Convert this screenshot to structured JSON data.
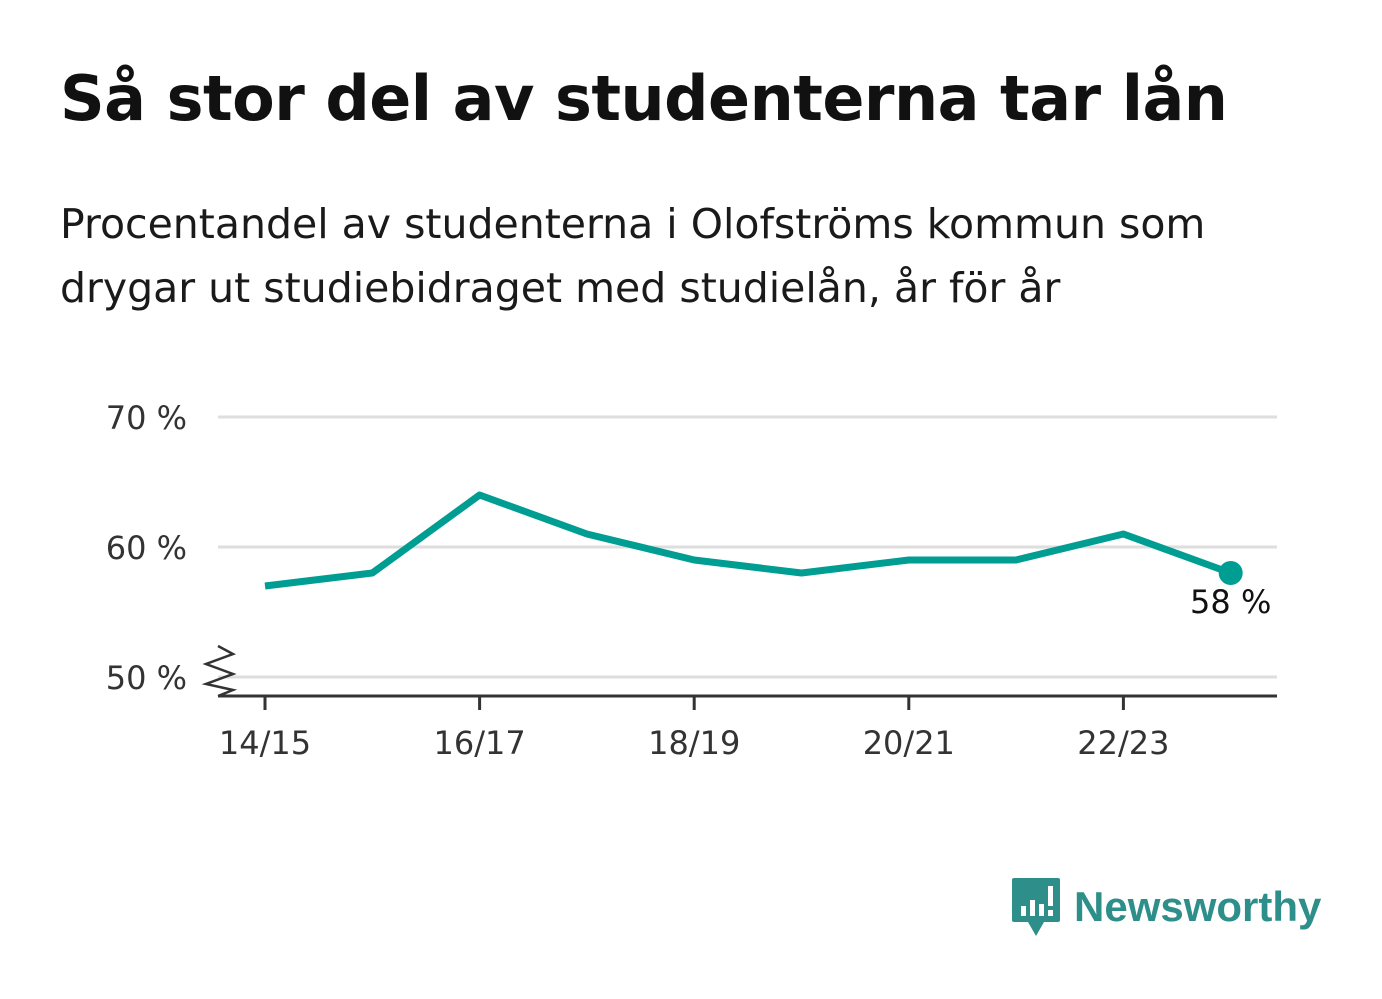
{
  "title": "Så stor del av studenterna tar lån",
  "subtitle": "Procentandel av studenterna i Olofströms kommun som drygar ut studiebidraget med studielån, år för år",
  "brand": "Newsworthy",
  "colors": {
    "line": "#009e92",
    "grid": "#dedede",
    "axis": "#333333",
    "brand": "#2e8f8a"
  },
  "chart_data": {
    "type": "line",
    "x": [
      "14/15",
      "15/16",
      "16/17",
      "17/18",
      "18/19",
      "19/20",
      "20/21",
      "21/22",
      "22/23",
      "23/24"
    ],
    "series": [
      {
        "values": [
          57,
          58,
          64,
          61,
          59,
          58,
          59,
          59,
          61,
          58
        ]
      }
    ],
    "xticks": [
      "14/15",
      "16/17",
      "18/19",
      "20/21",
      "22/23"
    ],
    "yticks": [
      {
        "value": 50,
        "label": "50 %"
      },
      {
        "value": 60,
        "label": "60 %"
      },
      {
        "value": 70,
        "label": "70 %"
      }
    ],
    "ylim": [
      50,
      70
    ],
    "y_axis_break": true,
    "grid": true,
    "end_label": "58 %"
  }
}
